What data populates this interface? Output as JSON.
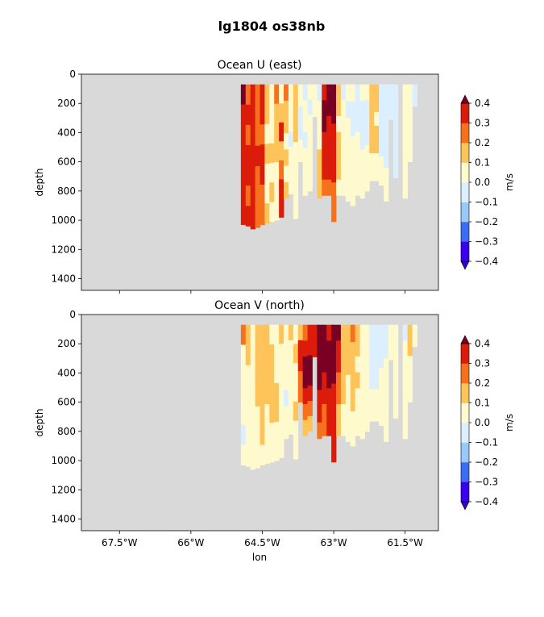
{
  "figure": {
    "title": "lg1804 os38nb"
  },
  "chart_data": [
    {
      "type": "heatmap",
      "title": "Ocean U (east)",
      "xlabel": "lon",
      "ylabel": "depth",
      "x_range": [
        -68.3,
        -60.8
      ],
      "y_range": [
        1480,
        0
      ],
      "y_ticks": [
        0,
        200,
        400,
        600,
        800,
        1000,
        1200,
        1400
      ],
      "x_ticks": [
        -67.5,
        -66,
        -64.5,
        -63,
        -61.5
      ],
      "x_tick_labels": [
        "67.5°W",
        "66°W",
        "64.5°W",
        "63°W",
        "61.5°W"
      ],
      "x_tick_labels_visible": false,
      "colorbar": {
        "label": "m/s",
        "levels": [
          -0.4,
          -0.3,
          -0.2,
          -0.1,
          0.0,
          0.1,
          0.2,
          0.3,
          0.4
        ],
        "tick_labels": [
          "−0.4",
          "−0.3",
          "−0.2",
          "−0.1",
          "0.0",
          "0.1",
          "0.2",
          "0.3",
          "0.4"
        ],
        "colors": [
          "#3a00f0",
          "#3b6cf7",
          "#99c9fb",
          "#dceffe",
          "#fffacd",
          "#fec45a",
          "#f7701c",
          "#dc1c0b"
        ],
        "under_color": "#3100d6",
        "over_color": "#7a0023",
        "extend": "both"
      },
      "nan_color": "#d9d9d9",
      "columns": [
        {
          "lon": -64.9,
          "bottom": 1030,
          "values": [
            0.45,
            0.3,
            0.35,
            0.3,
            0.35,
            0.3,
            0.3
          ]
        },
        {
          "lon": -64.8,
          "bottom": 1040,
          "values": [
            0.2,
            0.3,
            0.2,
            0.3,
            0.3,
            0.2,
            0.3
          ]
        },
        {
          "lon": -64.7,
          "bottom": 1060,
          "values": [
            0.3,
            0.35,
            0.35,
            0.3,
            0.35,
            0.35,
            0.3
          ]
        },
        {
          "lon": -64.6,
          "bottom": 1050,
          "values": [
            0.25,
            0.2,
            0.2,
            0.3,
            0.2,
            0.25,
            0.2
          ]
        },
        {
          "lon": -64.5,
          "bottom": 1030,
          "values": [
            0.3,
            0.3,
            0.25,
            0.3,
            0.3,
            0.2,
            0.2
          ]
        },
        {
          "lon": -64.4,
          "bottom": 1020,
          "values": [
            0.15,
            0.15,
            0.05,
            0.15,
            0.05,
            0.05,
            0.15
          ]
        },
        {
          "lon": -64.3,
          "bottom": 1010,
          "values": [
            0.05,
            0.05,
            0.05,
            0.15,
            0.05,
            0.15,
            0.05
          ]
        },
        {
          "lon": -64.2,
          "bottom": 1000,
          "values": [
            0.25,
            0.15,
            0.15,
            0.15,
            0.05,
            0.05,
            0.05
          ]
        },
        {
          "lon": -64.1,
          "bottom": 980,
          "values": [
            0.05,
            0.15,
            0.3,
            0.15,
            0.25,
            0.3,
            0.3
          ]
        },
        {
          "lon": -64.0,
          "bottom": 850,
          "values": [
            0.25,
            0.15,
            0.15,
            0.05,
            0.15,
            0.05,
            0.15
          ]
        },
        {
          "lon": -63.9,
          "bottom": 820,
          "values": [
            0.05,
            0.05,
            0.05,
            -0.05,
            0.05,
            0.05,
            0.05
          ]
        },
        {
          "lon": -63.8,
          "bottom": 990,
          "values": [
            0.15,
            0.15,
            0.15,
            0.05,
            0.05,
            0.05,
            0.05
          ]
        },
        {
          "lon": -63.7,
          "bottom": 600,
          "values": [
            0.05,
            0.05,
            -0.05,
            -0.05,
            -0.05,
            0.05,
            0.05
          ]
        },
        {
          "lon": -63.6,
          "bottom": 830,
          "values": [
            -0.05,
            0.05,
            0.05,
            -0.05,
            0.05,
            0.05,
            0.05
          ]
        },
        {
          "lon": -63.5,
          "bottom": 800,
          "values": [
            0.05,
            -0.05,
            0.05,
            0.05,
            0.05,
            0.05,
            0.05
          ]
        },
        {
          "lon": -63.4,
          "bottom": 290,
          "values": [
            0.05,
            0.05
          ]
        },
        {
          "lon": -63.3,
          "bottom": 850,
          "values": [
            -0.05,
            0.05,
            0.05,
            0.05,
            0.15,
            0.15,
            0.15
          ]
        },
        {
          "lon": -63.2,
          "bottom": 830,
          "values": [
            0.35,
            0.45,
            0.45,
            0.35,
            0.3,
            0.3,
            0.25
          ]
        },
        {
          "lon": -63.1,
          "bottom": 830,
          "values": [
            0.45,
            0.45,
            0.35,
            0.3,
            0.3,
            0.35,
            0.25
          ]
        },
        {
          "lon": -63.0,
          "bottom": 1010,
          "values": [
            0.45,
            0.45,
            0.35,
            0.35,
            0.3,
            0.2,
            0.25
          ]
        },
        {
          "lon": -62.9,
          "bottom": 830,
          "values": [
            0.15,
            0.15,
            0.05,
            0.15,
            0.15,
            0.15,
            0.05
          ]
        },
        {
          "lon": -62.8,
          "bottom": 830,
          "values": [
            -0.05,
            0.05,
            0.05,
            0.05,
            0.05,
            0.05,
            0.05
          ]
        },
        {
          "lon": -62.7,
          "bottom": 870,
          "values": [
            0.05,
            -0.05,
            0.05,
            0.05,
            0.05,
            0.05,
            0.05
          ]
        },
        {
          "lon": -62.6,
          "bottom": 900,
          "values": [
            0.05,
            -0.05,
            -0.05,
            0.05,
            0.05,
            0.05,
            0.05
          ]
        },
        {
          "lon": -62.5,
          "bottom": 830,
          "values": [
            -0.05,
            -0.05,
            -0.05,
            0.05,
            0.05,
            0.05,
            0.05
          ]
        },
        {
          "lon": -62.4,
          "bottom": 850,
          "values": [
            0.05,
            -0.05,
            -0.05,
            -0.05,
            0.05,
            0.05,
            0.05
          ]
        },
        {
          "lon": -62.3,
          "bottom": 800,
          "values": [
            0.05,
            -0.05,
            -0.05,
            -0.05,
            0.05,
            0.05,
            0.05
          ]
        },
        {
          "lon": -62.2,
          "bottom": 730,
          "values": [
            0.15,
            0.15,
            0.15,
            0.15,
            0.15,
            0.05,
            0.05
          ]
        },
        {
          "lon": -62.1,
          "bottom": 730,
          "values": [
            0.15,
            0.15,
            0.05,
            0.15,
            0.15,
            0.05,
            0.05
          ]
        },
        {
          "lon": -62.0,
          "bottom": 760,
          "values": [
            -0.05,
            -0.05,
            -0.05,
            -0.05,
            -0.05,
            0.05,
            0.05
          ]
        },
        {
          "lon": -61.9,
          "bottom": 870,
          "values": [
            -0.05,
            -0.05,
            -0.05,
            -0.05,
            -0.05,
            0.05,
            0.05
          ]
        },
        {
          "lon": -61.8,
          "bottom": 310,
          "values": [
            -0.05,
            -0.05
          ]
        },
        {
          "lon": -61.7,
          "bottom": 710,
          "values": [
            -0.05,
            -0.05,
            -0.05,
            -0.05,
            -0.05,
            -0.05
          ]
        },
        {
          "lon": -61.5,
          "bottom": 850,
          "values": [
            0.05,
            0.05,
            0.05,
            0.05,
            0.05,
            0.05,
            0.05
          ]
        },
        {
          "lon": -61.4,
          "bottom": 600,
          "values": [
            0.05,
            0.05,
            0.05,
            0.05,
            0.05
          ]
        },
        {
          "lon": -61.3,
          "bottom": 220,
          "values": [
            -0.05
          ]
        }
      ]
    },
    {
      "type": "heatmap",
      "title": "Ocean V (north)",
      "xlabel": "lon",
      "ylabel": "depth",
      "x_range": [
        -68.3,
        -60.8
      ],
      "y_range": [
        1480,
        0
      ],
      "y_ticks": [
        0,
        200,
        400,
        600,
        800,
        1000,
        1200,
        1400
      ],
      "x_ticks": [
        -67.5,
        -66,
        -64.5,
        -63,
        -61.5
      ],
      "x_tick_labels": [
        "67.5°W",
        "66°W",
        "64.5°W",
        "63°W",
        "61.5°W"
      ],
      "x_tick_labels_visible": true,
      "colorbar": {
        "label": "m/s",
        "levels": [
          -0.4,
          -0.3,
          -0.2,
          -0.1,
          0.0,
          0.1,
          0.2,
          0.3,
          0.4
        ],
        "tick_labels": [
          "−0.4",
          "−0.3",
          "−0.2",
          "−0.1",
          "0.0",
          "0.1",
          "0.2",
          "0.3",
          "0.4"
        ],
        "colors": [
          "#3a00f0",
          "#3b6cf7",
          "#99c9fb",
          "#dceffe",
          "#fffacd",
          "#fec45a",
          "#f7701c",
          "#dc1c0b"
        ],
        "under_color": "#3100d6",
        "over_color": "#7a0023",
        "extend": "both"
      },
      "nan_color": "#d9d9d9",
      "columns": [
        {
          "lon": -64.9,
          "bottom": 1030,
          "values": [
            0.25,
            0.05,
            0.05,
            0.05,
            0.05,
            -0.05,
            0.05
          ]
        },
        {
          "lon": -64.8,
          "bottom": 1040,
          "values": [
            0.15,
            0.15,
            0.05,
            0.05,
            0.05,
            0.05,
            0.05
          ]
        },
        {
          "lon": -64.7,
          "bottom": 1060,
          "values": [
            0.05,
            0.05,
            0.05,
            0.05,
            0.05,
            0.05,
            0.05
          ]
        },
        {
          "lon": -64.6,
          "bottom": 1050,
          "values": [
            0.15,
            0.15,
            0.15,
            0.15,
            0.05,
            0.05,
            0.05
          ]
        },
        {
          "lon": -64.5,
          "bottom": 1030,
          "values": [
            0.15,
            0.15,
            0.15,
            0.15,
            0.15,
            0.15,
            0.05
          ]
        },
        {
          "lon": -64.4,
          "bottom": 1020,
          "values": [
            0.15,
            0.15,
            0.15,
            0.15,
            0.05,
            0.05,
            0.05
          ]
        },
        {
          "lon": -64.3,
          "bottom": 1010,
          "values": [
            0.05,
            0.15,
            0.15,
            0.15,
            0.15,
            0.05,
            0.05
          ]
        },
        {
          "lon": -64.2,
          "bottom": 1000,
          "values": [
            0.05,
            0.05,
            0.05,
            0.15,
            0.15,
            0.05,
            0.05
          ]
        },
        {
          "lon": -64.1,
          "bottom": 980,
          "values": [
            0.15,
            0.05,
            0.05,
            0.05,
            0.05,
            0.05,
            0.05
          ]
        },
        {
          "lon": -64.0,
          "bottom": 850,
          "values": [
            0.05,
            0.05,
            0.05,
            0.05,
            -0.05,
            0.05,
            0.05
          ]
        },
        {
          "lon": -63.9,
          "bottom": 820,
          "values": [
            0.15,
            0.05,
            0.05,
            0.05,
            0.05,
            0.05,
            0.05
          ]
        },
        {
          "lon": -63.8,
          "bottom": 990,
          "values": [
            0.05,
            0.15,
            0.05,
            0.05,
            0.15,
            0.05,
            0.05
          ]
        },
        {
          "lon": -63.7,
          "bottom": 600,
          "values": [
            0.15,
            0.3,
            0.3,
            0.25,
            0.25
          ]
        },
        {
          "lon": -63.6,
          "bottom": 830,
          "values": [
            0.25,
            0.35,
            0.45,
            0.45,
            0.35,
            0.2,
            0.15
          ]
        },
        {
          "lon": -63.5,
          "bottom": 800,
          "values": [
            0.35,
            0.3,
            0.45,
            0.45,
            0.3,
            0.25,
            0.15
          ]
        },
        {
          "lon": -63.4,
          "bottom": 290,
          "values": [
            0.3,
            0.3
          ]
        },
        {
          "lon": -63.3,
          "bottom": 850,
          "values": [
            0.45,
            0.45,
            0.45,
            0.45,
            0.35,
            0.3,
            0.25
          ]
        },
        {
          "lon": -63.2,
          "bottom": 830,
          "values": [
            0.45,
            0.45,
            0.45,
            0.35,
            0.3,
            0.25,
            0.25
          ]
        },
        {
          "lon": -63.1,
          "bottom": 830,
          "values": [
            0.35,
            0.45,
            0.45,
            0.45,
            0.35,
            0.3,
            0.3
          ]
        },
        {
          "lon": -63.0,
          "bottom": 1010,
          "values": [
            0.45,
            0.45,
            0.45,
            0.35,
            0.3,
            0.3,
            0.3
          ]
        },
        {
          "lon": -62.9,
          "bottom": 830,
          "values": [
            0.45,
            0.35,
            0.3,
            0.25,
            0.25,
            0.15,
            0.15
          ]
        },
        {
          "lon": -62.8,
          "bottom": 830,
          "values": [
            0.15,
            0.15,
            0.15,
            0.15,
            0.15,
            0.05,
            0.05
          ]
        },
        {
          "lon": -62.7,
          "bottom": 870,
          "values": [
            0.15,
            0.15,
            0.15,
            0.05,
            0.05,
            0.05,
            0.05
          ]
        },
        {
          "lon": -62.6,
          "bottom": 900,
          "values": [
            0.25,
            0.15,
            0.15,
            0.15,
            0.15,
            0.05,
            0.05
          ]
        },
        {
          "lon": -62.5,
          "bottom": 830,
          "values": [
            0.15,
            0.15,
            0.05,
            0.15,
            0.05,
            0.05,
            0.05
          ]
        },
        {
          "lon": -62.4,
          "bottom": 850,
          "values": [
            0.05,
            0.05,
            0.05,
            0.05,
            0.05,
            0.05,
            0.05
          ]
        },
        {
          "lon": -62.3,
          "bottom": 800,
          "values": [
            0.05,
            0.05,
            0.05,
            0.05,
            0.05,
            0.05,
            0.05
          ]
        },
        {
          "lon": -62.2,
          "bottom": 730,
          "values": [
            -0.05,
            -0.05,
            -0.05,
            -0.05,
            0.05,
            0.05
          ]
        },
        {
          "lon": -62.1,
          "bottom": 730,
          "values": [
            -0.05,
            -0.05,
            -0.05,
            -0.05,
            0.05,
            0.05
          ]
        },
        {
          "lon": -62.0,
          "bottom": 760,
          "values": [
            -0.05,
            -0.05,
            -0.05,
            0.05,
            0.05,
            0.05,
            0.05
          ]
        },
        {
          "lon": -61.9,
          "bottom": 870,
          "values": [
            -0.05,
            -0.05,
            0.05,
            0.05,
            0.05,
            0.05,
            0.05
          ]
        },
        {
          "lon": -61.8,
          "bottom": 310,
          "values": [
            0.05,
            0.05
          ]
        },
        {
          "lon": -61.7,
          "bottom": 710,
          "values": [
            0.05,
            0.05,
            0.05,
            0.05,
            0.05,
            0.05
          ]
        },
        {
          "lon": -61.5,
          "bottom": 850,
          "values": [
            -0.05,
            0.05,
            0.05,
            0.05,
            0.05,
            0.05,
            0.05
          ]
        },
        {
          "lon": -61.4,
          "bottom": 600,
          "values": [
            0.15,
            0.15,
            0.05,
            0.05,
            0.05
          ]
        },
        {
          "lon": -61.3,
          "bottom": 220,
          "values": [
            0.05
          ]
        }
      ]
    }
  ]
}
